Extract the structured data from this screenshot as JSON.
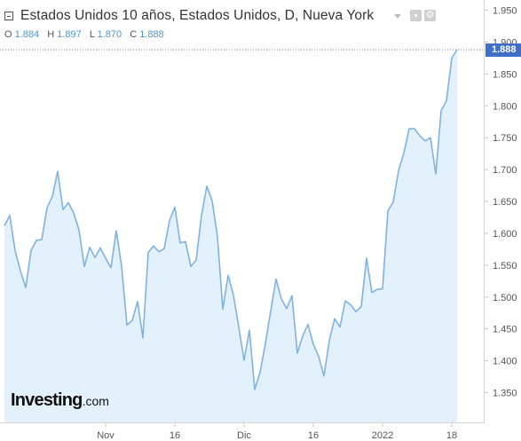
{
  "header": {
    "title": "Estados Unidos 10 años, Estados Unidos, D, Nueva York",
    "ohlc": [
      {
        "label": "O",
        "value": "1.884"
      },
      {
        "label": "H",
        "value": "1.897"
      },
      {
        "label": "L",
        "value": "1.870"
      },
      {
        "label": "C",
        "value": "1.888"
      }
    ]
  },
  "logo": {
    "text": "Investing",
    "suffix": ".com"
  },
  "last_price_badge": "1.888",
  "icons": [
    "collapse-icon",
    "dropdown-icon",
    "eye-icon",
    "settings-icon"
  ],
  "colors": {
    "line": "#7fb3e0",
    "fill": "#e2f1fb",
    "badge": "#3f6fc9",
    "ohlc_values": "#4f94d1"
  },
  "chart_data": {
    "type": "area",
    "title": "Estados Unidos 10 años, Estados Unidos, D, Nueva York",
    "xlabel": "",
    "ylabel": "",
    "ylim": [
      1.3,
      1.965
    ],
    "y_ticks": [
      "1.950",
      "1.900",
      "1.850",
      "1.800",
      "1.750",
      "1.700",
      "1.650",
      "1.600",
      "1.550",
      "1.500",
      "1.450",
      "1.400",
      "1.350"
    ],
    "x_ticks": [
      {
        "label": "Nov",
        "index": 19
      },
      {
        "label": "16",
        "index": 32
      },
      {
        "label": "Dic",
        "index": 45
      },
      {
        "label": "16",
        "index": 58
      },
      {
        "label": "2022",
        "index": 71
      },
      {
        "label": "18",
        "index": 84
      }
    ],
    "last_value": 1.888,
    "values": [
      1.612,
      1.628,
      1.573,
      1.541,
      1.515,
      1.573,
      1.589,
      1.59,
      1.64,
      1.658,
      1.697,
      1.637,
      1.648,
      1.632,
      1.605,
      1.548,
      1.578,
      1.562,
      1.577,
      1.561,
      1.546,
      1.604,
      1.548,
      1.456,
      1.463,
      1.493,
      1.436,
      1.57,
      1.58,
      1.571,
      1.576,
      1.62,
      1.641,
      1.585,
      1.587,
      1.548,
      1.558,
      1.628,
      1.674,
      1.651,
      1.595,
      1.481,
      1.534,
      1.503,
      1.453,
      1.401,
      1.448,
      1.355,
      1.382,
      1.427,
      1.478,
      1.528,
      1.497,
      1.482,
      1.502,
      1.412,
      1.439,
      1.457,
      1.426,
      1.407,
      1.376,
      1.432,
      1.466,
      1.453,
      1.494,
      1.488,
      1.477,
      1.485,
      1.561,
      1.507,
      1.512,
      1.513,
      1.635,
      1.649,
      1.698,
      1.726,
      1.764,
      1.764,
      1.753,
      1.745,
      1.75,
      1.693,
      1.792,
      1.808,
      1.875,
      1.888
    ]
  }
}
